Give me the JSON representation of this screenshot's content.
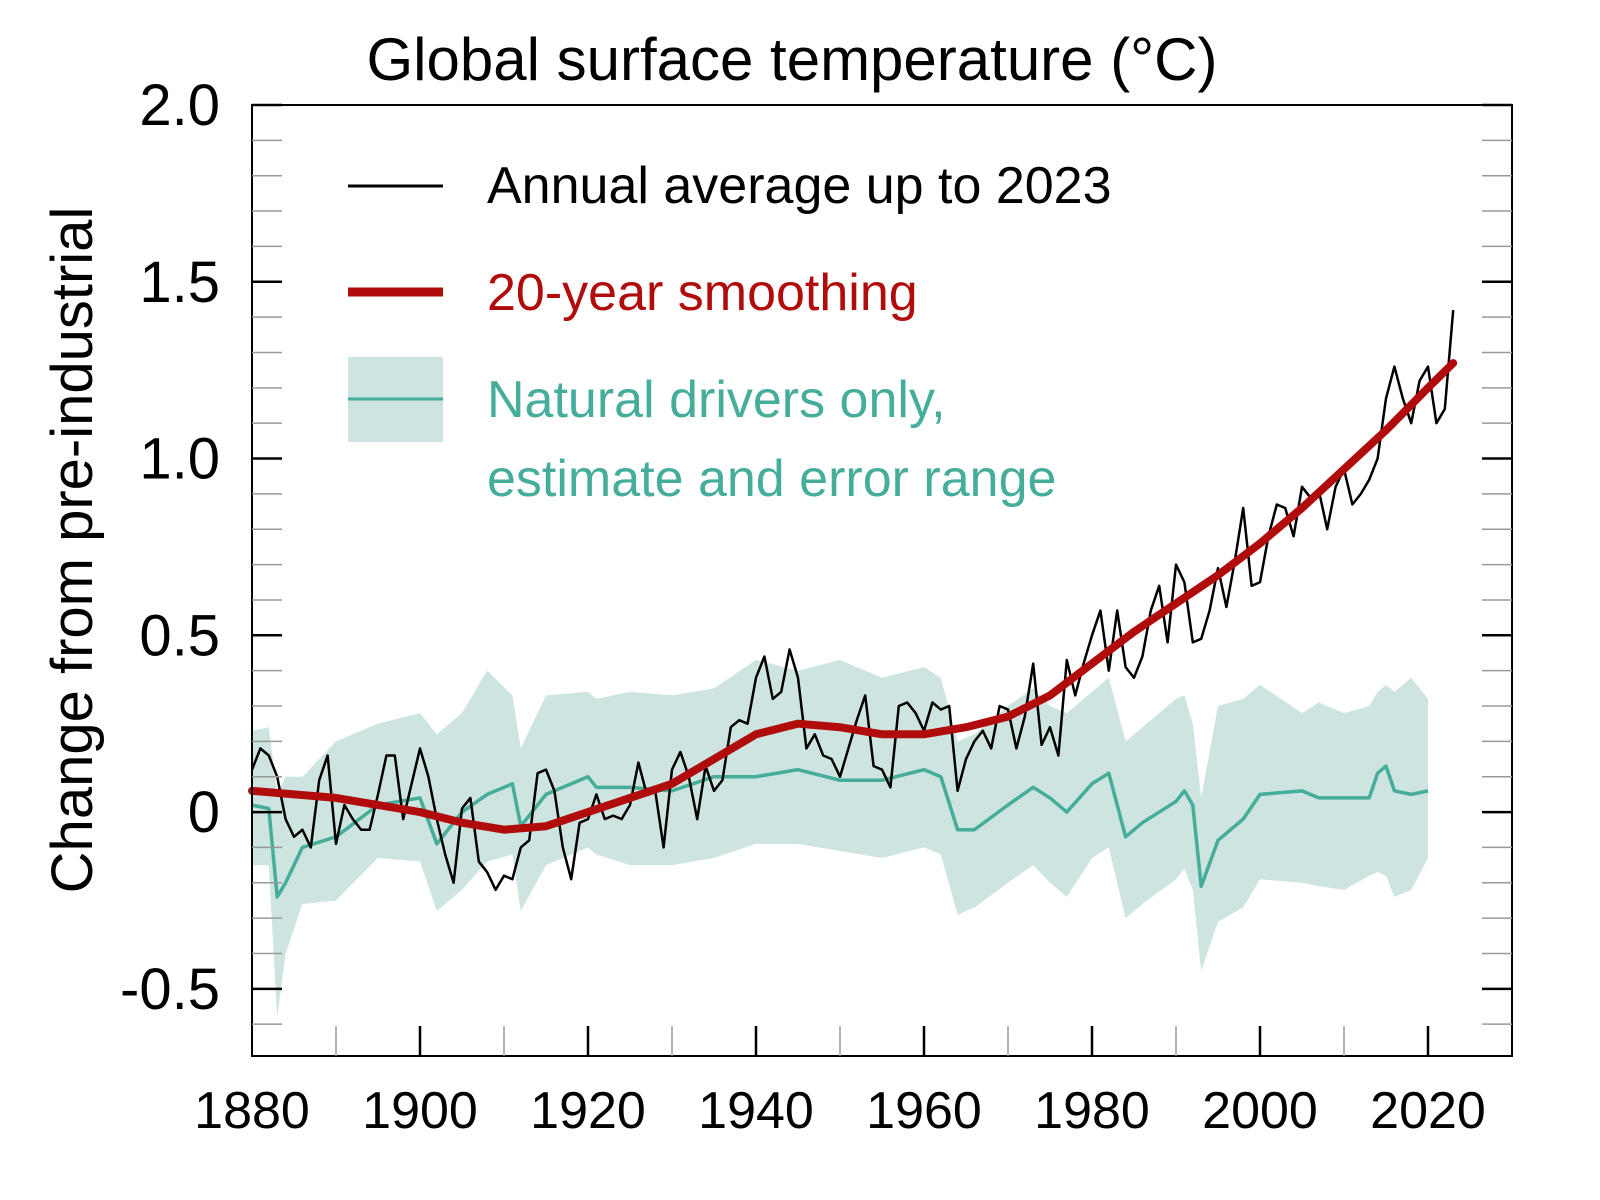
{
  "chart_data": {
    "type": "line",
    "title": "Global surface temperature (°C)",
    "ylabel": "Change from pre-industrial",
    "xlabel": "",
    "xlim": [
      1880,
      2030
    ],
    "ylim": [
      -0.69,
      2.0
    ],
    "x_ticks": [
      1880,
      1900,
      1920,
      1940,
      1960,
      1980,
      2000,
      2020
    ],
    "x_tick_labels": [
      "1880",
      "1900",
      "1920",
      "1940",
      "1960",
      "1980",
      "2000",
      "2020"
    ],
    "y_ticks": [
      -0.5,
      0,
      0.5,
      1.0,
      1.5,
      2.0
    ],
    "y_tick_labels": [
      "-0.5",
      "0",
      "0.5",
      "1.0",
      "1.5",
      "2.0"
    ],
    "grid": false,
    "legend_placement": "top-left",
    "colors": {
      "annual": "#000000",
      "smoothing": "#b00c0c",
      "natural": "#45ad9a",
      "natural_band": "#cde4e0"
    },
    "legend": [
      {
        "label": "Annual average up to 2023"
      },
      {
        "label": "20-year smoothing"
      },
      {
        "label_line1": "Natural drivers only,",
        "label_line2": "estimate and error range"
      }
    ],
    "annual": {
      "start_year": 1880,
      "values": [
        0.12,
        0.18,
        0.16,
        0.1,
        -0.02,
        -0.07,
        -0.05,
        -0.1,
        0.09,
        0.16,
        -0.09,
        0.02,
        -0.02,
        -0.05,
        -0.05,
        0.05,
        0.16,
        0.16,
        -0.02,
        0.08,
        0.18,
        0.1,
        -0.02,
        -0.12,
        -0.2,
        0.01,
        0.04,
        -0.14,
        -0.17,
        -0.22,
        -0.18,
        -0.19,
        -0.1,
        -0.08,
        0.11,
        0.12,
        0.06,
        -0.1,
        -0.19,
        -0.03,
        -0.02,
        0.05,
        -0.02,
        -0.01,
        -0.02,
        0.02,
        0.14,
        0.05,
        0.06,
        -0.1,
        0.12,
        0.17,
        0.1,
        -0.02,
        0.13,
        0.06,
        0.09,
        0.24,
        0.26,
        0.25,
        0.38,
        0.44,
        0.32,
        0.34,
        0.46,
        0.38,
        0.18,
        0.22,
        0.16,
        0.15,
        0.1,
        0.18,
        0.26,
        0.33,
        0.13,
        0.12,
        0.07,
        0.3,
        0.31,
        0.28,
        0.23,
        0.31,
        0.29,
        0.3,
        0.06,
        0.15,
        0.2,
        0.23,
        0.18,
        0.3,
        0.29,
        0.18,
        0.27,
        0.42,
        0.19,
        0.24,
        0.16,
        0.43,
        0.33,
        0.42,
        0.5,
        0.57,
        0.4,
        0.57,
        0.41,
        0.38,
        0.44,
        0.57,
        0.64,
        0.48,
        0.7,
        0.65,
        0.48,
        0.49,
        0.57,
        0.69,
        0.58,
        0.71,
        0.86,
        0.64,
        0.65,
        0.78,
        0.87,
        0.86,
        0.78,
        0.92,
        0.89,
        0.91,
        0.8,
        0.92,
        0.97,
        0.87,
        0.9,
        0.94,
        1.0,
        1.17,
        1.26,
        1.17,
        1.1,
        1.22,
        1.26,
        1.1,
        1.14,
        1.42
      ]
    },
    "smoothing": {
      "years": [
        1880,
        1890,
        1900,
        1905,
        1910,
        1915,
        1920,
        1925,
        1930,
        1935,
        1940,
        1945,
        1950,
        1955,
        1960,
        1965,
        1970,
        1975,
        1980,
        1985,
        1990,
        1995,
        2000,
        2005,
        2010,
        2015,
        2020,
        2023
      ],
      "values": [
        0.06,
        0.04,
        0.0,
        -0.03,
        -0.05,
        -0.04,
        0.0,
        0.04,
        0.08,
        0.15,
        0.22,
        0.25,
        0.24,
        0.22,
        0.22,
        0.24,
        0.27,
        0.33,
        0.42,
        0.51,
        0.59,
        0.67,
        0.76,
        0.86,
        0.97,
        1.08,
        1.2,
        1.27
      ]
    },
    "natural": {
      "years": [
        1880,
        1882,
        1883,
        1884,
        1886,
        1890,
        1895,
        1900,
        1902,
        1905,
        1908,
        1911,
        1912,
        1915,
        1920,
        1921,
        1925,
        1930,
        1935,
        1940,
        1945,
        1950,
        1955,
        1960,
        1962,
        1964,
        1966,
        1970,
        1973,
        1975,
        1977,
        1980,
        1982,
        1984,
        1986,
        1990,
        1991,
        1992,
        1993,
        1995,
        1998,
        2000,
        2005,
        2007,
        2010,
        2013,
        2014,
        2015,
        2016,
        2018,
        2020
      ],
      "estimate": [
        0.02,
        0.01,
        -0.24,
        -0.2,
        -0.1,
        -0.07,
        0.02,
        0.04,
        -0.09,
        0.0,
        0.05,
        0.08,
        -0.04,
        0.05,
        0.1,
        0.07,
        0.07,
        0.06,
        0.1,
        0.1,
        0.12,
        0.09,
        0.09,
        0.12,
        0.1,
        -0.05,
        -0.05,
        0.02,
        0.07,
        0.04,
        0.0,
        0.08,
        0.11,
        -0.07,
        -0.03,
        0.03,
        0.06,
        0.02,
        -0.21,
        -0.08,
        -0.02,
        0.05,
        0.06,
        0.04,
        0.04,
        0.04,
        0.11,
        0.13,
        0.06,
        0.05,
        0.06
      ],
      "upper": [
        0.23,
        0.24,
        0.05,
        0.1,
        0.1,
        0.2,
        0.25,
        0.28,
        0.22,
        0.28,
        0.4,
        0.33,
        0.18,
        0.33,
        0.34,
        0.32,
        0.34,
        0.33,
        0.35,
        0.43,
        0.4,
        0.43,
        0.38,
        0.41,
        0.38,
        0.2,
        0.22,
        0.3,
        0.35,
        0.3,
        0.28,
        0.34,
        0.38,
        0.2,
        0.24,
        0.32,
        0.33,
        0.25,
        0.04,
        0.3,
        0.32,
        0.36,
        0.28,
        0.31,
        0.28,
        0.3,
        0.34,
        0.36,
        0.34,
        0.38,
        0.32
      ],
      "lower": [
        -0.15,
        -0.15,
        -0.58,
        -0.4,
        -0.26,
        -0.25,
        -0.13,
        -0.14,
        -0.28,
        -0.22,
        -0.14,
        -0.12,
        -0.28,
        -0.15,
        -0.1,
        -0.12,
        -0.15,
        -0.15,
        -0.13,
        -0.09,
        -0.09,
        -0.11,
        -0.13,
        -0.1,
        -0.12,
        -0.29,
        -0.27,
        -0.2,
        -0.15,
        -0.2,
        -0.24,
        -0.13,
        -0.1,
        -0.3,
        -0.26,
        -0.19,
        -0.16,
        -0.22,
        -0.45,
        -0.31,
        -0.27,
        -0.19,
        -0.2,
        -0.21,
        -0.22,
        -0.18,
        -0.17,
        -0.18,
        -0.24,
        -0.22,
        -0.13
      ]
    }
  }
}
